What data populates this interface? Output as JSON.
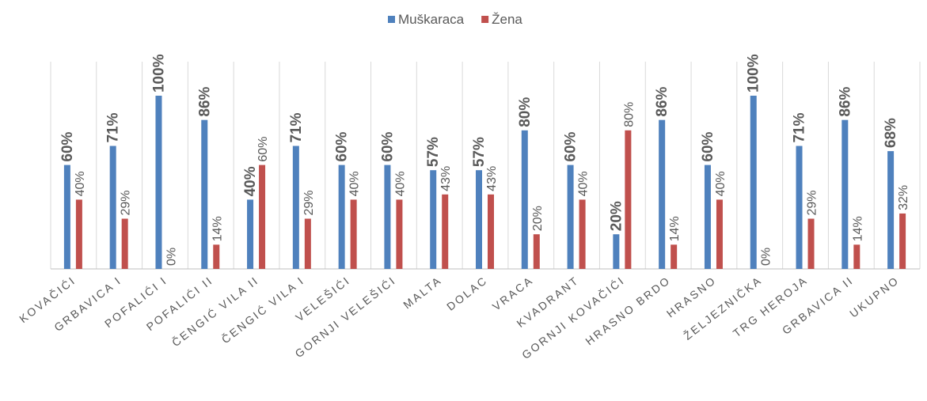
{
  "chart_data": {
    "type": "bar",
    "categories": [
      "KOVAČIĆI",
      "GRBAVICA I",
      "POFALIĆI I",
      "POFALIĆI II",
      "ČENGIĆ VILA II",
      "ČENGIĆ VILA I",
      "VELEŠIĆI",
      "GORNJI VELEŠIĆI",
      "MALTA",
      "DOLAC",
      "VRACA",
      "KVADRANT",
      "GORNJI KOVAČIĆI",
      "HRASNO BRDO",
      "HRASNO",
      "ŽELJEZNIČKA",
      "TRG HEROJA",
      "GRBAVICA II",
      "UKUPNO"
    ],
    "series": [
      {
        "name": "Muškaraca",
        "color": "#4f81bd",
        "values": [
          60,
          71,
          100,
          86,
          40,
          71,
          60,
          60,
          57,
          57,
          80,
          60,
          20,
          86,
          60,
          100,
          71,
          86,
          68
        ],
        "value_labels": [
          "60%",
          "71%",
          "100%",
          "86%",
          "40%",
          "71%",
          "60%",
          "60%",
          "57%",
          "57%",
          "80%",
          "60%",
          "20%",
          "86%",
          "60%",
          "100%",
          "71%",
          "86%",
          "68%"
        ]
      },
      {
        "name": "Žena",
        "color": "#c0504d",
        "values": [
          40,
          29,
          0,
          14,
          60,
          29,
          40,
          40,
          43,
          43,
          20,
          40,
          80,
          14,
          40,
          0,
          29,
          14,
          32
        ],
        "value_labels": [
          "40%",
          "29%",
          "0%",
          "14%",
          "60%",
          "29%",
          "40%",
          "40%",
          "43%",
          "43%",
          "20%",
          "40%",
          "80%",
          "14%",
          "40%",
          "0%",
          "29%",
          "14%",
          "32%"
        ]
      }
    ],
    "legend": "top"
  }
}
